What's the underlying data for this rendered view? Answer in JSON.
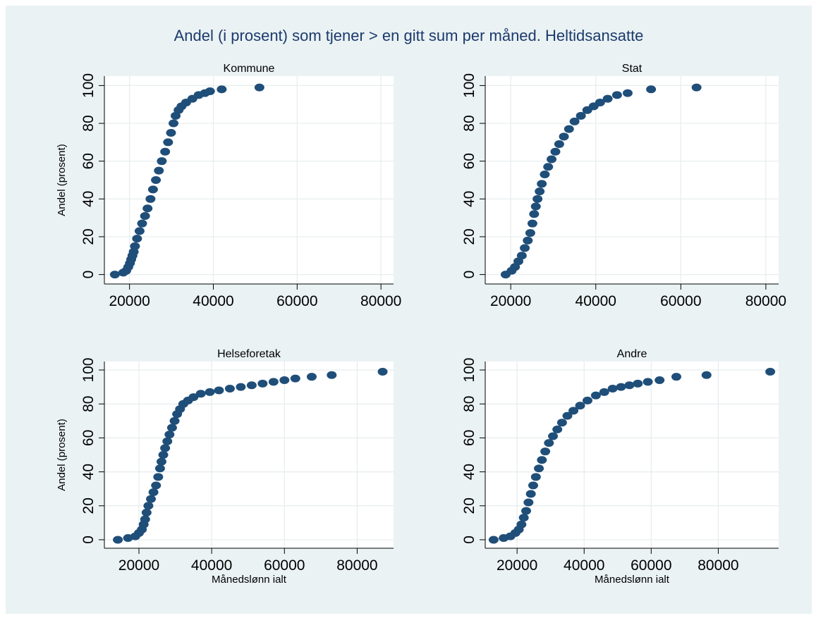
{
  "title": "Andel (i prosent) som tjener > en gitt sum per måned. Heltidsansatte",
  "colors": {
    "background": "#eaf2f3",
    "plot_area": "#ffffff",
    "grid": "#e6ecee",
    "marker": "#1f4e79",
    "title": "#1c3a6e"
  },
  "chart_data": [
    {
      "type": "scatter",
      "title": "Kommune",
      "xlabel": "",
      "ylabel": "Andel (prosent)",
      "xlim": [
        14000,
        83000
      ],
      "ylim": [
        -5,
        105
      ],
      "xticks": [
        "20000",
        "40000",
        "60000",
        "80000"
      ],
      "yticks": [
        "0",
        "20",
        "40",
        "60",
        "80",
        "100"
      ],
      "grid": true,
      "x": [
        16500,
        18500,
        19200,
        19700,
        20100,
        20400,
        20700,
        21000,
        21300,
        21800,
        22400,
        23000,
        23700,
        24300,
        25000,
        25600,
        26300,
        27000,
        27700,
        28500,
        29200,
        29900,
        30500,
        31000,
        31700,
        32400,
        33500,
        35000,
        36500,
        38000,
        39200,
        42000,
        51000
      ],
      "y": [
        0,
        1,
        2,
        4,
        6,
        8,
        10,
        12,
        15,
        19,
        23,
        27,
        31,
        35,
        40,
        45,
        50,
        55,
        60,
        65,
        70,
        75,
        80,
        84,
        87,
        89,
        91,
        93,
        95,
        96,
        97,
        98,
        99
      ]
    },
    {
      "type": "scatter",
      "title": "Stat",
      "xlabel": "",
      "ylabel": "",
      "xlim": [
        14000,
        83000
      ],
      "ylim": [
        -5,
        105
      ],
      "xticks": [
        "20000",
        "40000",
        "60000",
        "80000"
      ],
      "yticks": [
        "0",
        "20",
        "40",
        "60",
        "80",
        "100"
      ],
      "grid": true,
      "x": [
        18800,
        20200,
        21000,
        21800,
        22600,
        23300,
        24000,
        24600,
        25100,
        25500,
        25900,
        26300,
        26800,
        27300,
        28000,
        28800,
        29600,
        30500,
        31400,
        32500,
        33700,
        35000,
        36500,
        38000,
        39500,
        41000,
        42800,
        45000,
        47500,
        53000,
        63700
      ],
      "y": [
        0,
        2,
        4,
        7,
        10,
        14,
        18,
        22,
        27,
        32,
        36,
        40,
        44,
        48,
        53,
        57,
        61,
        65,
        69,
        73,
        77,
        81,
        84,
        87,
        89,
        91,
        93,
        95,
        96,
        98,
        99
      ]
    },
    {
      "type": "scatter",
      "title": "Helseforetak",
      "xlabel": "Månedslønn ialt",
      "ylabel": "Andel (prosent)",
      "xlim": [
        10500,
        90000
      ],
      "ylim": [
        -5,
        105
      ],
      "xticks": [
        "20000",
        "40000",
        "60000",
        "80000"
      ],
      "yticks": [
        "0",
        "20",
        "40",
        "60",
        "80",
        "100"
      ],
      "grid": true,
      "x": [
        14200,
        17000,
        19000,
        20000,
        20800,
        21300,
        21700,
        22100,
        22600,
        23300,
        24000,
        24700,
        25300,
        25800,
        26200,
        26700,
        27200,
        27800,
        28400,
        29100,
        29800,
        30500,
        31300,
        32200,
        33500,
        35000,
        37000,
        39500,
        42000,
        45000,
        48000,
        51000,
        54000,
        57000,
        60000,
        63000,
        67500,
        73000,
        87000
      ],
      "y": [
        0,
        1,
        2,
        4,
        6,
        9,
        12,
        16,
        20,
        24,
        28,
        32,
        37,
        42,
        46,
        50,
        54,
        58,
        62,
        66,
        70,
        74,
        77,
        80,
        82,
        84,
        86,
        87,
        88,
        89,
        90,
        91,
        92,
        93,
        94,
        95,
        96,
        97,
        99
      ]
    },
    {
      "type": "scatter",
      "title": "Andre",
      "xlabel": "Månedslønn ialt",
      "ylabel": "",
      "xlim": [
        10500,
        98000
      ],
      "ylim": [
        -5,
        105
      ],
      "xticks": [
        "20000",
        "40000",
        "60000",
        "80000"
      ],
      "yticks": [
        "0",
        "20",
        "40",
        "60",
        "80",
        "100"
      ],
      "grid": true,
      "x": [
        13000,
        16000,
        18000,
        19500,
        20500,
        21300,
        22000,
        22700,
        23400,
        24100,
        24800,
        25600,
        26500,
        27400,
        28400,
        29500,
        30700,
        32000,
        33400,
        35000,
        36800,
        38800,
        41000,
        43500,
        46000,
        48500,
        51000,
        53500,
        56000,
        59000,
        62500,
        67500,
        76500,
        95500
      ],
      "y": [
        0,
        1,
        2,
        4,
        6,
        9,
        13,
        17,
        22,
        27,
        32,
        37,
        42,
        47,
        52,
        57,
        61,
        65,
        69,
        73,
        76,
        79,
        82,
        85,
        87,
        89,
        90,
        91,
        92,
        93,
        94,
        96,
        97,
        99
      ]
    }
  ]
}
